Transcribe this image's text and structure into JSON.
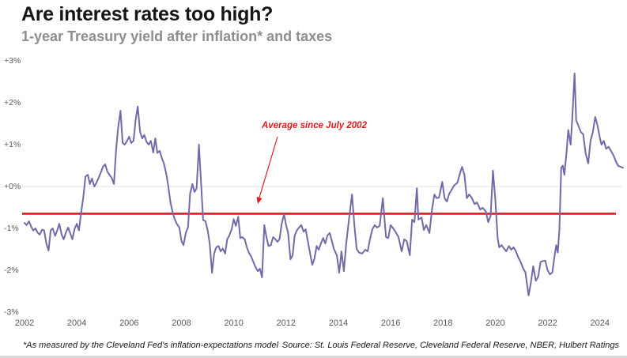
{
  "header": {
    "title": "Are interest rates too high?",
    "subtitle": "1-year Treasury yield after inflation* and taxes"
  },
  "annotation": {
    "label": "Average since July 2002"
  },
  "footnotes": {
    "left": "*As measured by the Cleveland Fed's inflation-expectations model",
    "right": "Source: St. Louis Federal Reserve, Cleveland Federal Reserve, NBER, Hulbert Ratings"
  },
  "colors": {
    "line": "#7568a8",
    "average": "#dd1c1f",
    "gridline": "#ececec",
    "axis_text": "#595959",
    "title": "#161616",
    "subtitle": "#8e8e8e"
  },
  "chart_data": {
    "type": "line",
    "title": "Are interest rates too high?",
    "subtitle": "1-year Treasury yield after inflation* and taxes",
    "xlabel": "",
    "ylabel": "1-year Treasury yield after inflation and taxes (%)",
    "xlim": [
      2002,
      2025
    ],
    "ylim": [
      -3,
      3
    ],
    "grid": "horizontal line at 0% only",
    "legend_position": "none",
    "y_ticks": [
      "+3%",
      "+2%",
      "+1%",
      "+0%",
      "-1%",
      "-2%",
      "-3%"
    ],
    "y_tick_values": [
      3,
      2,
      1,
      0,
      -1,
      -2,
      -3
    ],
    "x_ticks": [
      2002,
      2004,
      2006,
      2008,
      2010,
      2012,
      2014,
      2016,
      2018,
      2020,
      2022,
      2024
    ],
    "average_line": {
      "value": -0.65,
      "label": "Average since July 2002",
      "color": "#dd1c1f"
    },
    "series": [
      {
        "name": "1-year Treasury yield after inflation and taxes",
        "color": "#7568a8",
        "points": [
          [
            2002.0,
            -0.87
          ],
          [
            2002.08,
            -0.92
          ],
          [
            2002.17,
            -0.83
          ],
          [
            2002.25,
            -0.95
          ],
          [
            2002.33,
            -1.05
          ],
          [
            2002.42,
            -1.0
          ],
          [
            2002.5,
            -1.1
          ],
          [
            2002.58,
            -1.15
          ],
          [
            2002.67,
            -1.03
          ],
          [
            2002.75,
            -1.05
          ],
          [
            2002.83,
            -1.35
          ],
          [
            2002.92,
            -1.53
          ],
          [
            2003.0,
            -1.05
          ],
          [
            2003.08,
            -1.0
          ],
          [
            2003.17,
            -1.18
          ],
          [
            2003.25,
            -1.05
          ],
          [
            2003.33,
            -0.89
          ],
          [
            2003.42,
            -1.15
          ],
          [
            2003.5,
            -1.26
          ],
          [
            2003.58,
            -1.1
          ],
          [
            2003.67,
            -0.98
          ],
          [
            2003.75,
            -1.12
          ],
          [
            2003.83,
            -1.26
          ],
          [
            2003.92,
            -1.0
          ],
          [
            2004.0,
            -0.89
          ],
          [
            2004.08,
            -1.05
          ],
          [
            2004.17,
            -0.6
          ],
          [
            2004.25,
            -0.25
          ],
          [
            2004.33,
            0.24
          ],
          [
            2004.42,
            0.28
          ],
          [
            2004.5,
            0.06
          ],
          [
            2004.58,
            0.19
          ],
          [
            2004.67,
            0.0
          ],
          [
            2004.75,
            0.09
          ],
          [
            2004.83,
            0.2
          ],
          [
            2004.92,
            0.34
          ],
          [
            2005.0,
            0.47
          ],
          [
            2005.08,
            0.53
          ],
          [
            2005.17,
            0.35
          ],
          [
            2005.25,
            0.28
          ],
          [
            2005.33,
            0.21
          ],
          [
            2005.42,
            0.06
          ],
          [
            2005.5,
            0.87
          ],
          [
            2005.58,
            1.4
          ],
          [
            2005.67,
            1.81
          ],
          [
            2005.75,
            1.04
          ],
          [
            2005.83,
            1.0
          ],
          [
            2005.92,
            1.09
          ],
          [
            2006.0,
            1.19
          ],
          [
            2006.08,
            1.04
          ],
          [
            2006.17,
            1.09
          ],
          [
            2006.25,
            1.6
          ],
          [
            2006.33,
            1.91
          ],
          [
            2006.42,
            1.3
          ],
          [
            2006.5,
            1.15
          ],
          [
            2006.58,
            1.23
          ],
          [
            2006.67,
            1.06
          ],
          [
            2006.75,
            1.0
          ],
          [
            2006.83,
            1.09
          ],
          [
            2006.92,
            0.81
          ],
          [
            2007.0,
            1.15
          ],
          [
            2007.08,
            0.8
          ],
          [
            2007.17,
            0.85
          ],
          [
            2007.25,
            0.68
          ],
          [
            2007.33,
            0.55
          ],
          [
            2007.42,
            0.3
          ],
          [
            2007.5,
            0.0
          ],
          [
            2007.58,
            -0.38
          ],
          [
            2007.67,
            -0.64
          ],
          [
            2007.75,
            -0.79
          ],
          [
            2007.83,
            -0.9
          ],
          [
            2007.92,
            -0.98
          ],
          [
            2008.0,
            -1.3
          ],
          [
            2008.08,
            -1.4
          ],
          [
            2008.17,
            -1.1
          ],
          [
            2008.25,
            -0.98
          ],
          [
            2008.33,
            -0.17
          ],
          [
            2008.42,
            0.06
          ],
          [
            2008.5,
            -0.13
          ],
          [
            2008.58,
            -0.04
          ],
          [
            2008.67,
            1.0
          ],
          [
            2008.75,
            0.09
          ],
          [
            2008.83,
            -0.8
          ],
          [
            2008.92,
            -0.83
          ],
          [
            2009.0,
            -1.04
          ],
          [
            2009.08,
            -1.36
          ],
          [
            2009.17,
            -2.06
          ],
          [
            2009.25,
            -1.6
          ],
          [
            2009.33,
            -1.45
          ],
          [
            2009.42,
            -1.42
          ],
          [
            2009.5,
            -1.55
          ],
          [
            2009.58,
            -1.48
          ],
          [
            2009.67,
            -1.6
          ],
          [
            2009.75,
            -1.26
          ],
          [
            2009.83,
            -1.17
          ],
          [
            2009.92,
            -1.02
          ],
          [
            2010.0,
            -0.78
          ],
          [
            2010.08,
            -0.94
          ],
          [
            2010.17,
            -0.72
          ],
          [
            2010.25,
            -1.23
          ],
          [
            2010.33,
            -1.21
          ],
          [
            2010.42,
            -1.26
          ],
          [
            2010.5,
            -1.45
          ],
          [
            2010.58,
            -1.58
          ],
          [
            2010.67,
            -1.68
          ],
          [
            2010.75,
            -1.8
          ],
          [
            2010.83,
            -1.92
          ],
          [
            2010.92,
            -2.02
          ],
          [
            2011.0,
            -1.96
          ],
          [
            2011.08,
            -2.17
          ],
          [
            2011.17,
            -0.92
          ],
          [
            2011.25,
            -1.21
          ],
          [
            2011.33,
            -1.42
          ],
          [
            2011.42,
            -1.4
          ],
          [
            2011.5,
            -1.21
          ],
          [
            2011.58,
            -1.25
          ],
          [
            2011.67,
            -1.32
          ],
          [
            2011.75,
            -1.26
          ],
          [
            2011.83,
            -0.9
          ],
          [
            2011.92,
            -0.66
          ],
          [
            2012.0,
            -0.92
          ],
          [
            2012.08,
            -1.11
          ],
          [
            2012.17,
            -1.74
          ],
          [
            2012.25,
            -1.64
          ],
          [
            2012.33,
            -1.17
          ],
          [
            2012.42,
            -1.04
          ],
          [
            2012.5,
            -0.98
          ],
          [
            2012.58,
            -0.92
          ],
          [
            2012.67,
            -1.08
          ],
          [
            2012.75,
            -1.02
          ],
          [
            2012.83,
            -1.3
          ],
          [
            2012.92,
            -1.6
          ],
          [
            2013.0,
            -1.87
          ],
          [
            2013.08,
            -1.74
          ],
          [
            2013.17,
            -1.42
          ],
          [
            2013.25,
            -1.51
          ],
          [
            2013.33,
            -1.36
          ],
          [
            2013.42,
            -1.23
          ],
          [
            2013.5,
            -1.36
          ],
          [
            2013.58,
            -1.17
          ],
          [
            2013.67,
            -1.11
          ],
          [
            2013.75,
            -1.3
          ],
          [
            2013.83,
            -1.49
          ],
          [
            2013.94,
            -1.64
          ],
          [
            2014.03,
            -2.06
          ],
          [
            2014.12,
            -1.55
          ],
          [
            2014.21,
            -2.02
          ],
          [
            2014.3,
            -1.36
          ],
          [
            2014.42,
            -0.7
          ],
          [
            2014.52,
            -0.19
          ],
          [
            2014.61,
            -0.9
          ],
          [
            2014.7,
            -1.49
          ],
          [
            2014.79,
            -1.58
          ],
          [
            2014.91,
            -1.6
          ],
          [
            2015.03,
            -1.51
          ],
          [
            2015.12,
            -1.55
          ],
          [
            2015.21,
            -1.25
          ],
          [
            2015.3,
            -1.02
          ],
          [
            2015.39,
            -0.92
          ],
          [
            2015.48,
            -0.98
          ],
          [
            2015.58,
            -0.94
          ],
          [
            2015.7,
            -0.28
          ],
          [
            2015.82,
            -1.21
          ],
          [
            2015.91,
            -1.23
          ],
          [
            2016.0,
            -0.92
          ],
          [
            2016.12,
            -1.02
          ],
          [
            2016.21,
            -1.11
          ],
          [
            2016.3,
            -1.21
          ],
          [
            2016.42,
            -1.55
          ],
          [
            2016.52,
            -1.26
          ],
          [
            2016.61,
            -1.3
          ],
          [
            2016.73,
            -1.64
          ],
          [
            2016.82,
            -0.79
          ],
          [
            2016.91,
            -0.85
          ],
          [
            2017.0,
            -0.04
          ],
          [
            2017.06,
            -0.79
          ],
          [
            2017.18,
            -0.74
          ],
          [
            2017.27,
            -1.04
          ],
          [
            2017.36,
            -0.92
          ],
          [
            2017.48,
            -1.11
          ],
          [
            2017.58,
            -0.55
          ],
          [
            2017.67,
            -0.19
          ],
          [
            2017.76,
            -0.28
          ],
          [
            2017.85,
            -0.26
          ],
          [
            2017.97,
            0.11
          ],
          [
            2018.06,
            -0.28
          ],
          [
            2018.15,
            -0.36
          ],
          [
            2018.24,
            -0.17
          ],
          [
            2018.33,
            -0.08
          ],
          [
            2018.42,
            0.02
          ],
          [
            2018.55,
            0.09
          ],
          [
            2018.64,
            0.3
          ],
          [
            2018.73,
            0.47
          ],
          [
            2018.82,
            0.28
          ],
          [
            2018.91,
            -0.28
          ],
          [
            2019.0,
            -0.19
          ],
          [
            2019.09,
            -0.26
          ],
          [
            2019.21,
            -0.42
          ],
          [
            2019.3,
            -0.38
          ],
          [
            2019.42,
            -0.55
          ],
          [
            2019.52,
            -0.51
          ],
          [
            2019.64,
            -0.6
          ],
          [
            2019.73,
            -0.85
          ],
          [
            2019.82,
            -0.7
          ],
          [
            2019.91,
            0.38
          ],
          [
            2020.0,
            -0.3
          ],
          [
            2020.09,
            -1.23
          ],
          [
            2020.15,
            -1.45
          ],
          [
            2020.24,
            -1.4
          ],
          [
            2020.33,
            -1.48
          ],
          [
            2020.42,
            -1.55
          ],
          [
            2020.52,
            -1.42
          ],
          [
            2020.61,
            -1.51
          ],
          [
            2020.7,
            -1.45
          ],
          [
            2020.79,
            -1.55
          ],
          [
            2020.88,
            -1.7
          ],
          [
            2020.97,
            -1.8
          ],
          [
            2021.06,
            -1.95
          ],
          [
            2021.15,
            -2.05
          ],
          [
            2021.27,
            -2.6
          ],
          [
            2021.36,
            -2.3
          ],
          [
            2021.45,
            -1.9
          ],
          [
            2021.55,
            -2.25
          ],
          [
            2021.64,
            -2.15
          ],
          [
            2021.73,
            -1.8
          ],
          [
            2021.82,
            -1.78
          ],
          [
            2021.91,
            -1.77
          ],
          [
            2022.0,
            -2.0
          ],
          [
            2022.09,
            -2.1
          ],
          [
            2022.18,
            -2.05
          ],
          [
            2022.27,
            -1.64
          ],
          [
            2022.33,
            -1.4
          ],
          [
            2022.39,
            -1.58
          ],
          [
            2022.45,
            -1.02
          ],
          [
            2022.48,
            -0.4
          ],
          [
            2022.52,
            0.45
          ],
          [
            2022.58,
            0.5
          ],
          [
            2022.64,
            0.28
          ],
          [
            2022.73,
            0.85
          ],
          [
            2022.79,
            1.35
          ],
          [
            2022.88,
            1.0
          ],
          [
            2022.94,
            1.6
          ],
          [
            2023.03,
            2.7
          ],
          [
            2023.09,
            1.58
          ],
          [
            2023.18,
            1.45
          ],
          [
            2023.27,
            1.3
          ],
          [
            2023.36,
            1.25
          ],
          [
            2023.45,
            0.8
          ],
          [
            2023.55,
            0.55
          ],
          [
            2023.64,
            1.1
          ],
          [
            2023.73,
            1.3
          ],
          [
            2023.82,
            1.66
          ],
          [
            2023.91,
            1.45
          ],
          [
            2024.0,
            1.15
          ],
          [
            2024.06,
            1.0
          ],
          [
            2024.15,
            1.09
          ],
          [
            2024.24,
            0.9
          ],
          [
            2024.33,
            0.95
          ],
          [
            2024.42,
            0.85
          ],
          [
            2024.52,
            0.74
          ],
          [
            2024.61,
            0.6
          ],
          [
            2024.7,
            0.49
          ],
          [
            2024.79,
            0.47
          ],
          [
            2024.88,
            0.45
          ]
        ]
      }
    ]
  }
}
